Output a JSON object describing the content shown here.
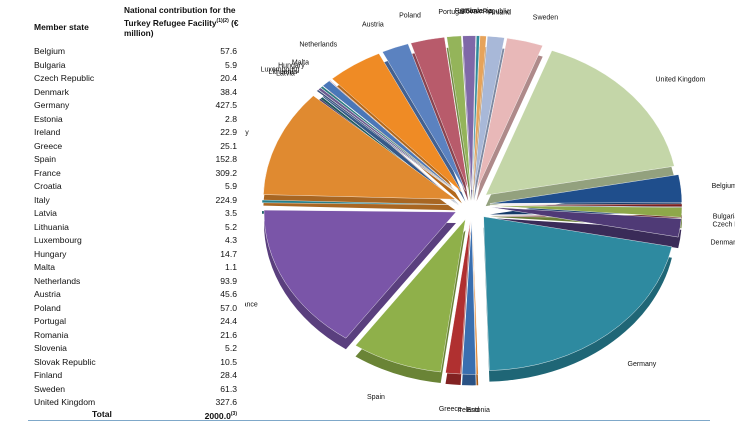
{
  "table": {
    "col_member": "Member state",
    "col_contribution": "National contribution for the Turkey Refugee Facility",
    "col_contribution_sup": "(1)(2)",
    "col_contribution_unit": "(€ million)",
    "total_label": "Total",
    "total_value": "2000.0",
    "total_sup": "(3)"
  },
  "chart_data": {
    "type": "pie",
    "title": "",
    "style": "exploded 3D pie",
    "categories": [
      "Belgium",
      "Bulgaria",
      "Czech Republic",
      "Denmark",
      "Germany",
      "Estonia",
      "Ireland",
      "Greece",
      "Spain",
      "France",
      "Croatia",
      "Italy",
      "Latvia",
      "Lithuania",
      "Luxembourg",
      "Hungary",
      "Malta",
      "Netherlands",
      "Austria",
      "Poland",
      "Portugal",
      "Romania",
      "Slovenia",
      "Slovak Republic",
      "Finland",
      "Sweden",
      "United Kingdom"
    ],
    "values": [
      57.6,
      5.9,
      20.4,
      38.4,
      427.5,
      2.8,
      22.9,
      25.1,
      152.8,
      309.2,
      5.9,
      224.9,
      3.5,
      5.2,
      4.3,
      14.7,
      1.1,
      93.9,
      45.6,
      57.0,
      24.4,
      21.6,
      5.2,
      10.5,
      28.4,
      61.3,
      327.6
    ],
    "display_values": [
      "57.6",
      "5.9",
      "20.4",
      "38.4",
      "427.5",
      "2.8",
      "22.9",
      "25.1",
      "152.8",
      "309.2",
      "5.9",
      "224.9",
      "3.5",
      "5.2",
      "4.3",
      "14.7",
      "1.1",
      "93.9",
      "45.6",
      "57.0",
      "24.4",
      "21.6",
      "5.2",
      "10.5",
      "28.4",
      "61.3",
      "327.6"
    ],
    "labels": [
      "Belgium",
      "Bulgaria",
      "Czech Republic",
      "Denmark",
      "Germany",
      "Estonia",
      "Ireland",
      "Greece",
      "Spain",
      "France",
      "Croatia",
      "Italy",
      "Latvia",
      "Lithuania",
      "Luxembourg",
      "Hungary",
      "Malta",
      "Netherlands",
      "Austria",
      "Poland",
      "Portugal",
      "Romania",
      "Slovenia",
      "Slovak Republic",
      "Finland",
      "Sweden",
      "United Kingdom"
    ],
    "colors": [
      "#1f4e8c",
      "#7a2020",
      "#8ea84a",
      "#4f3a76",
      "#2e8aa0",
      "#e07b20",
      "#3a6fb0",
      "#b03030",
      "#8fb04a",
      "#7a55a8",
      "#247f8a",
      "#e08a30",
      "#3b4f7a",
      "#6a5a90",
      "#2a7a80",
      "#4a77b8",
      "#b85a5a",
      "#ef8b25",
      "#5b82c0",
      "#b85b6b",
      "#94b45a",
      "#7f68a8",
      "#2e8a9a",
      "#e6a35a",
      "#a8b8d8",
      "#e8b8b8",
      "#c4d6a8"
    ],
    "side_colors": [
      "#163a68",
      "#5a1616",
      "#6a7e36",
      "#3a2b58",
      "#1f6676",
      "#a85a16",
      "#2a5284",
      "#822222",
      "#6a8436",
      "#5a3f7e",
      "#1a5e66",
      "#a86622",
      "#2b3a5a",
      "#4f436c",
      "#1e5a5e",
      "#365988",
      "#8a4242",
      "#b3681b",
      "#436190",
      "#8a4450",
      "#6f8742",
      "#5f4e7e",
      "#226672",
      "#ad7a42",
      "#7e8aa2",
      "#ae8a8a",
      "#93a17e"
    ]
  }
}
